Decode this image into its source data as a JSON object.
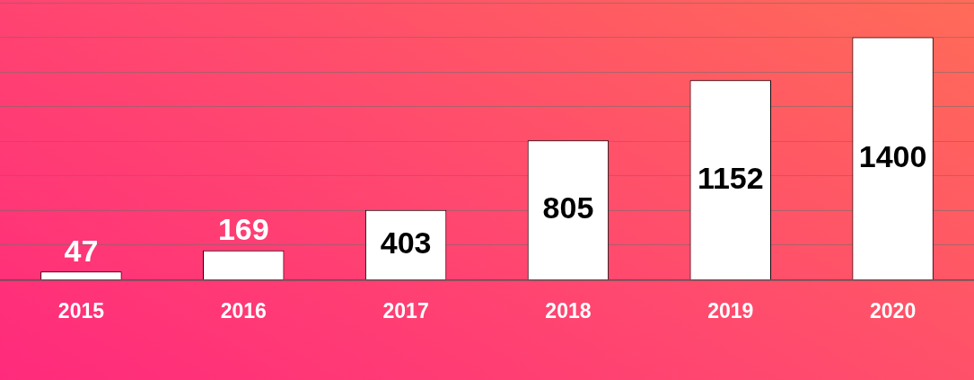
{
  "chart_data": {
    "type": "bar",
    "categories": [
      "2015",
      "2016",
      "2017",
      "2018",
      "2019",
      "2020"
    ],
    "values": [
      47,
      169,
      403,
      805,
      1152,
      1400
    ],
    "color": "#ffffff",
    "grid": "y",
    "tick_labels": "x",
    "data_labels": true
  }
}
